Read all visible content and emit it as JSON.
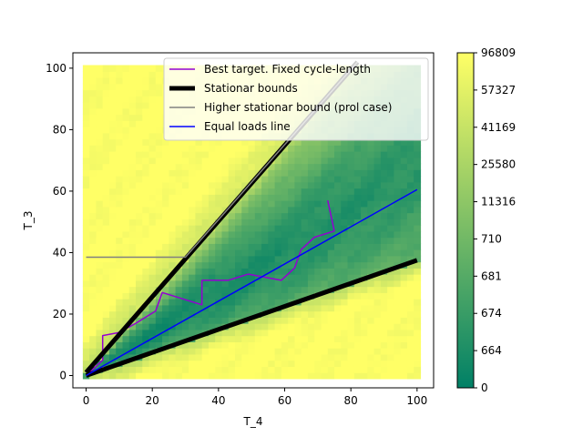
{
  "chart_data": {
    "type": "heatmap",
    "xlabel": "T_4",
    "ylabel": "T_3",
    "xlim": [
      -4,
      105
    ],
    "ylim": [
      -4,
      105
    ],
    "x_ticks": [
      0,
      20,
      40,
      60,
      80,
      100
    ],
    "y_ticks": [
      0,
      20,
      40,
      60,
      80,
      100
    ],
    "grid": false,
    "legend_position": "top-right",
    "heatmap": {
      "x_range": [
        0,
        100
      ],
      "y_range": [
        0,
        100
      ],
      "colormap": "summer",
      "description_regions": "dark green band between lower and upper stationary bounds, light yellow outside"
    },
    "colorbar": {
      "tick_labels": [
        "0",
        "664",
        "674",
        "681",
        "710",
        "11316",
        "25580",
        "41169",
        "57327",
        "96809"
      ],
      "color_low": "#008066",
      "color_high": "#ffff66"
    },
    "series": [
      {
        "name": "Best target. Fixed cycle-length",
        "color": "#9400d3",
        "width": 1.5,
        "points": [
          [
            1,
            1
          ],
          [
            5,
            5
          ],
          [
            5,
            13
          ],
          [
            10,
            14
          ],
          [
            15,
            17
          ],
          [
            21,
            21
          ],
          [
            23,
            27
          ],
          [
            35,
            23
          ],
          [
            35,
            31
          ],
          [
            43,
            31
          ],
          [
            49,
            33
          ],
          [
            59,
            31
          ],
          [
            63,
            35
          ],
          [
            65,
            41
          ],
          [
            69,
            45
          ],
          [
            72,
            46
          ],
          [
            75,
            47
          ],
          [
            73,
            57
          ]
        ]
      },
      {
        "name": "Stationar bounds",
        "color": "#000000",
        "width": 5,
        "segments": [
          [
            [
              0,
              1
            ],
            [
              82,
              102
            ]
          ],
          [
            [
              0,
              0
            ],
            [
              100,
              37.5
            ]
          ]
        ]
      },
      {
        "name": "Higher stationar bound (prol case)",
        "color": "#808080",
        "width": 1.5,
        "points": [
          [
            0,
            38.5
          ],
          [
            30,
            38.5
          ],
          [
            82,
            102
          ]
        ]
      },
      {
        "name": "Equal loads line",
        "color": "#0000ff",
        "width": 1.5,
        "points": [
          [
            0,
            0
          ],
          [
            100,
            60.5
          ]
        ]
      }
    ]
  }
}
